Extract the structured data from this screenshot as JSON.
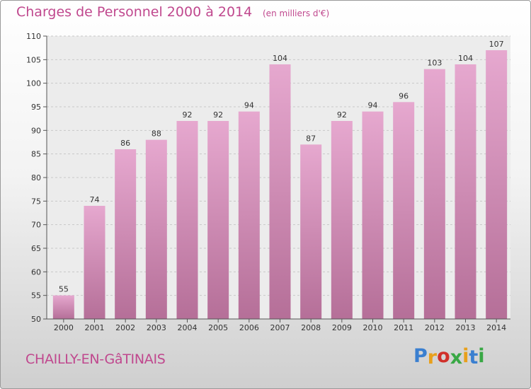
{
  "header": {
    "title": "Charges de Personnel 2000 à 2014",
    "subtitle": "(en milliers d'€)"
  },
  "footer": {
    "commune": "CHAILLY-EN-GâTINAIS",
    "logo_text": "Proxiti",
    "logo_colors": [
      "#3a7fd0",
      "#e8a01c",
      "#d0302a",
      "#39a845",
      "#e8a01c",
      "#3a7fd0",
      "#39a845"
    ]
  },
  "chart_data": {
    "type": "bar",
    "title": "Charges de Personnel 2000 à 2014",
    "subtitle": "(en milliers d'€)",
    "categories": [
      "2000",
      "2001",
      "2002",
      "2003",
      "2004",
      "2005",
      "2006",
      "2007",
      "2008",
      "2009",
      "2010",
      "2011",
      "2012",
      "2013",
      "2014"
    ],
    "values": [
      55,
      74,
      86,
      88,
      92,
      92,
      94,
      104,
      87,
      92,
      94,
      96,
      103,
      104,
      107
    ],
    "ylim": [
      50,
      110
    ],
    "yticks": [
      50,
      55,
      60,
      65,
      70,
      75,
      80,
      85,
      90,
      95,
      100,
      105,
      110
    ],
    "grid": true,
    "bar_color_top": "#e6a8cf",
    "bar_color_bottom": "#b56f98"
  }
}
